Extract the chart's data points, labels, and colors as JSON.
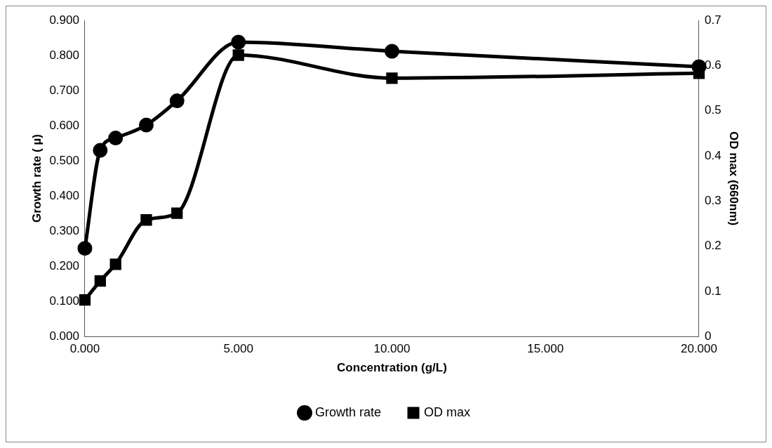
{
  "chart_data": {
    "type": "line",
    "xlabel": "Concentration (g/L)",
    "ylabel": "Growth rate ( µ)",
    "y2label": "OD max (660nm)",
    "x": [
      0,
      0.5,
      1,
      2,
      3,
      5,
      10,
      20
    ],
    "series": [
      {
        "name": "Growth rate",
        "color": "#000000",
        "marker": "circle",
        "values": [
          0.251,
          0.53,
          0.565,
          0.602,
          0.671,
          0.838,
          0.812,
          0.768
        ]
      },
      {
        "name": "OD max",
        "color": "#000000",
        "marker": "square",
        "axis": "y2",
        "values": [
          0.081,
          0.123,
          0.16,
          0.258,
          0.273,
          0.623,
          0.572,
          0.583
        ]
      }
    ],
    "xlim": [
      0,
      20
    ],
    "xticks": [
      {
        "value": 0,
        "label": "0.000"
      },
      {
        "value": 5,
        "label": "5.000"
      },
      {
        "value": 10,
        "label": "10.000"
      },
      {
        "value": 15,
        "label": "15.000"
      },
      {
        "value": 20,
        "label": "20.000"
      }
    ],
    "ylim": [
      0,
      0.9
    ],
    "yticks": [
      {
        "value": 0,
        "label": "0.000"
      },
      {
        "value": 0.1,
        "label": "0.100"
      },
      {
        "value": 0.2,
        "label": "0.200"
      },
      {
        "value": 0.3,
        "label": "0.300"
      },
      {
        "value": 0.4,
        "label": "0.400"
      },
      {
        "value": 0.5,
        "label": "0.500"
      },
      {
        "value": 0.6,
        "label": "0.600"
      },
      {
        "value": 0.7,
        "label": "0.700"
      },
      {
        "value": 0.8,
        "label": "0.800"
      },
      {
        "value": 0.9,
        "label": "0.900"
      }
    ],
    "y2lim": [
      0,
      0.7
    ],
    "y2ticks": [
      0,
      0.1,
      0.2,
      0.3,
      0.4,
      0.5,
      0.6,
      0.7
    ],
    "legend": "bottom"
  }
}
